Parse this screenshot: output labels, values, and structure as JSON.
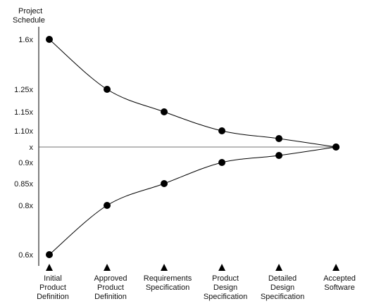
{
  "chart_data": {
    "type": "line",
    "title": "Project Schedule",
    "ylabel_lines": [
      "Project",
      "Schedule"
    ],
    "y_ticks": [
      {
        "label": "1.6x",
        "value": 1.6
      },
      {
        "label": "1.25x",
        "value": 1.25
      },
      {
        "label": "1.15x",
        "value": 1.15
      },
      {
        "label": "1.10x",
        "value": 1.1
      },
      {
        "label": "x",
        "value": 1.0
      },
      {
        "label": "0.9x",
        "value": 0.9
      },
      {
        "label": "0.85x",
        "value": 0.85
      },
      {
        "label": "0.8x",
        "value": 0.8
      },
      {
        "label": "0.6x",
        "value": 0.6
      }
    ],
    "categories": [
      [
        "Initial",
        "Product",
        "Definition"
      ],
      [
        "Approved",
        "Product",
        "Definition"
      ],
      [
        "Requirements",
        "Specification"
      ],
      [
        "Product",
        "Design",
        "Specification"
      ],
      [
        "Detailed",
        "Design",
        "Specification"
      ],
      [
        "Accepted",
        "Software"
      ]
    ],
    "series": [
      {
        "values": [
          1.6,
          1.25,
          1.15,
          1.1,
          1.05,
          1.0
        ]
      },
      {
        "values": [
          0.6,
          0.8,
          0.85,
          0.9,
          0.95,
          1.0
        ]
      }
    ],
    "reference_line": 1.0,
    "grid": false,
    "legend": "none"
  }
}
